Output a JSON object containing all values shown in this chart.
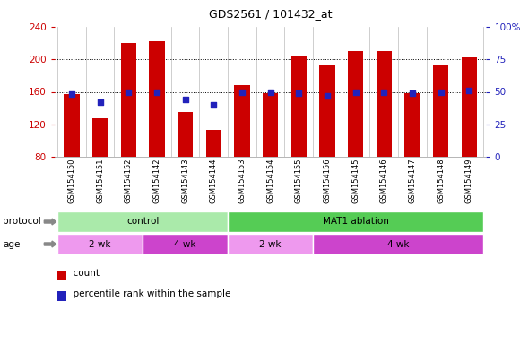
{
  "title": "GDS2561 / 101432_at",
  "samples": [
    "GSM154150",
    "GSM154151",
    "GSM154152",
    "GSM154142",
    "GSM154143",
    "GSM154144",
    "GSM154153",
    "GSM154154",
    "GSM154155",
    "GSM154156",
    "GSM154145",
    "GSM154146",
    "GSM154147",
    "GSM154148",
    "GSM154149"
  ],
  "counts": [
    157,
    128,
    220,
    222,
    135,
    113,
    168,
    158,
    205,
    193,
    210,
    210,
    158,
    193,
    203
  ],
  "percentiles": [
    48,
    42,
    50,
    50,
    44,
    40,
    50,
    50,
    49,
    47,
    50,
    50,
    49,
    50,
    51
  ],
  "ylim_left": [
    80,
    240
  ],
  "ylim_right": [
    0,
    100
  ],
  "yticks_left": [
    80,
    120,
    160,
    200,
    240
  ],
  "yticks_right": [
    0,
    25,
    50,
    75,
    100
  ],
  "bar_color": "#cc0000",
  "dot_color": "#2222bb",
  "protocol_groups": [
    {
      "label": "control",
      "start": 0,
      "end": 6,
      "color": "#aaeaaa"
    },
    {
      "label": "MAT1 ablation",
      "start": 6,
      "end": 15,
      "color": "#55cc55"
    }
  ],
  "age_groups": [
    {
      "label": "2 wk",
      "start": 0,
      "end": 3,
      "color": "#ee99ee"
    },
    {
      "label": "4 wk",
      "start": 3,
      "end": 6,
      "color": "#cc44cc"
    },
    {
      "label": "2 wk",
      "start": 6,
      "end": 9,
      "color": "#ee99ee"
    },
    {
      "label": "4 wk",
      "start": 9,
      "end": 15,
      "color": "#cc44cc"
    }
  ],
  "background_color": "#ffffff",
  "xlabel_bg_color": "#cccccc",
  "legend_items": [
    {
      "label": "count",
      "color": "#cc0000"
    },
    {
      "label": "percentile rank within the sample",
      "color": "#2222bb"
    }
  ]
}
